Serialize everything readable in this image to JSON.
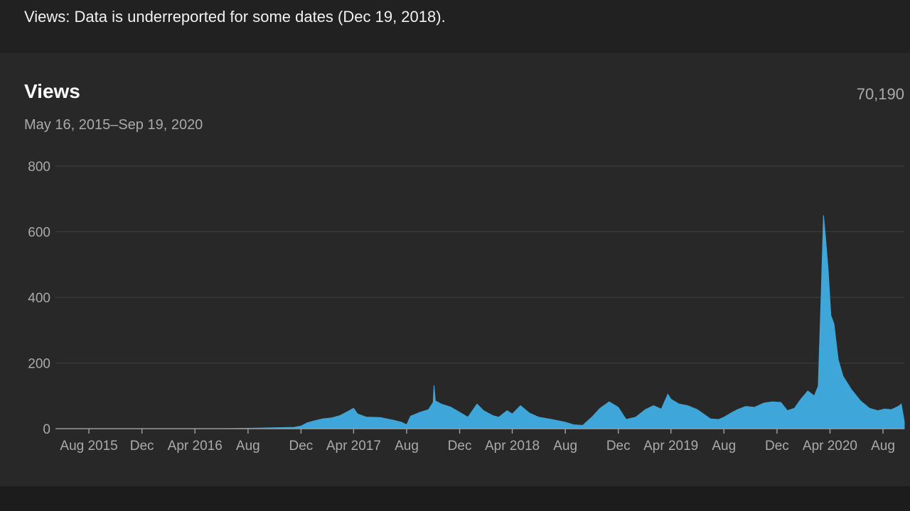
{
  "notice": {
    "text": "Views: Data is underreported for some dates (Dec 19, 2018)."
  },
  "card": {
    "title": "Views",
    "date_range": "May 16, 2015–Sep 19, 2020",
    "total": "70,190"
  },
  "colors": {
    "series": "#3ea6d8",
    "gridline": "#3f3f3f",
    "baseline": "#9a9a9a",
    "background": "#282828"
  },
  "chart_data": {
    "type": "area",
    "title": "Views",
    "xlabel": "",
    "ylabel": "",
    "x_range": [
      "2015-05-16",
      "2020-09-19"
    ],
    "ylim": [
      0,
      800
    ],
    "grid": true,
    "y_ticks": [
      0,
      200,
      400,
      600,
      800
    ],
    "x_ticks": [
      {
        "date": "2015-08-01",
        "label": "Aug 2015"
      },
      {
        "date": "2015-12-01",
        "label": "Dec"
      },
      {
        "date": "2016-04-01",
        "label": "Apr 2016"
      },
      {
        "date": "2016-08-01",
        "label": "Aug"
      },
      {
        "date": "2016-12-01",
        "label": "Dec"
      },
      {
        "date": "2017-04-01",
        "label": "Apr 2017"
      },
      {
        "date": "2017-08-01",
        "label": "Aug"
      },
      {
        "date": "2017-12-01",
        "label": "Dec"
      },
      {
        "date": "2018-04-01",
        "label": "Apr 2018"
      },
      {
        "date": "2018-08-01",
        "label": "Aug"
      },
      {
        "date": "2018-12-01",
        "label": "Dec"
      },
      {
        "date": "2019-04-01",
        "label": "Apr 2019"
      },
      {
        "date": "2019-08-01",
        "label": "Aug"
      },
      {
        "date": "2019-12-01",
        "label": "Dec"
      },
      {
        "date": "2020-04-01",
        "label": "Apr 2020"
      },
      {
        "date": "2020-08-01",
        "label": "Aug"
      }
    ],
    "series": [
      {
        "points": [
          [
            "2015-05-16",
            0
          ],
          [
            "2016-06-01",
            0
          ],
          [
            "2016-09-01",
            2
          ],
          [
            "2016-11-15",
            4
          ],
          [
            "2016-12-01",
            8
          ],
          [
            "2016-12-15",
            18
          ],
          [
            "2017-01-01",
            24
          ],
          [
            "2017-01-20",
            30
          ],
          [
            "2017-02-10",
            33
          ],
          [
            "2017-03-01",
            40
          ],
          [
            "2017-03-15",
            50
          ],
          [
            "2017-04-01",
            62
          ],
          [
            "2017-04-10",
            45
          ],
          [
            "2017-05-01",
            35
          ],
          [
            "2017-06-01",
            34
          ],
          [
            "2017-07-01",
            26
          ],
          [
            "2017-07-20",
            20
          ],
          [
            "2017-08-01",
            12
          ],
          [
            "2017-08-10",
            38
          ],
          [
            "2017-09-01",
            50
          ],
          [
            "2017-09-20",
            58
          ],
          [
            "2017-10-01",
            80
          ],
          [
            "2017-10-03",
            132
          ],
          [
            "2017-10-06",
            85
          ],
          [
            "2017-10-20",
            75
          ],
          [
            "2017-11-10",
            66
          ],
          [
            "2017-12-01",
            50
          ],
          [
            "2017-12-20",
            35
          ],
          [
            "2018-01-01",
            58
          ],
          [
            "2018-01-10",
            75
          ],
          [
            "2018-01-25",
            55
          ],
          [
            "2018-02-15",
            40
          ],
          [
            "2018-03-01",
            35
          ],
          [
            "2018-03-20",
            55
          ],
          [
            "2018-04-01",
            45
          ],
          [
            "2018-04-20",
            70
          ],
          [
            "2018-05-10",
            48
          ],
          [
            "2018-06-01",
            35
          ],
          [
            "2018-07-01",
            28
          ],
          [
            "2018-08-01",
            20
          ],
          [
            "2018-08-20",
            12
          ],
          [
            "2018-09-10",
            10
          ],
          [
            "2018-10-01",
            35
          ],
          [
            "2018-10-20",
            62
          ],
          [
            "2018-11-10",
            82
          ],
          [
            "2018-12-01",
            65
          ],
          [
            "2018-12-19",
            28
          ],
          [
            "2019-01-10",
            35
          ],
          [
            "2019-02-01",
            58
          ],
          [
            "2019-02-20",
            70
          ],
          [
            "2019-03-10",
            60
          ],
          [
            "2019-03-25",
            105
          ],
          [
            "2019-04-01",
            90
          ],
          [
            "2019-04-20",
            75
          ],
          [
            "2019-05-10",
            70
          ],
          [
            "2019-06-01",
            58
          ],
          [
            "2019-07-01",
            30
          ],
          [
            "2019-07-20",
            28
          ],
          [
            "2019-08-01",
            35
          ],
          [
            "2019-08-20",
            50
          ],
          [
            "2019-09-01",
            58
          ],
          [
            "2019-09-20",
            68
          ],
          [
            "2019-10-10",
            65
          ],
          [
            "2019-11-01",
            78
          ],
          [
            "2019-11-20",
            82
          ],
          [
            "2019-12-10",
            80
          ],
          [
            "2019-12-25",
            55
          ],
          [
            "2020-01-10",
            62
          ],
          [
            "2020-01-25",
            90
          ],
          [
            "2020-02-10",
            115
          ],
          [
            "2020-02-25",
            100
          ],
          [
            "2020-03-05",
            130
          ],
          [
            "2020-03-12",
            420
          ],
          [
            "2020-03-17",
            650
          ],
          [
            "2020-03-22",
            580
          ],
          [
            "2020-03-28",
            480
          ],
          [
            "2020-04-03",
            345
          ],
          [
            "2020-04-10",
            320
          ],
          [
            "2020-04-20",
            210
          ],
          [
            "2020-05-01",
            160
          ],
          [
            "2020-05-20",
            120
          ],
          [
            "2020-06-10",
            85
          ],
          [
            "2020-07-01",
            62
          ],
          [
            "2020-07-20",
            55
          ],
          [
            "2020-08-05",
            60
          ],
          [
            "2020-08-20",
            58
          ],
          [
            "2020-09-05",
            68
          ],
          [
            "2020-09-12",
            75
          ],
          [
            "2020-09-19",
            22
          ]
        ]
      }
    ]
  }
}
